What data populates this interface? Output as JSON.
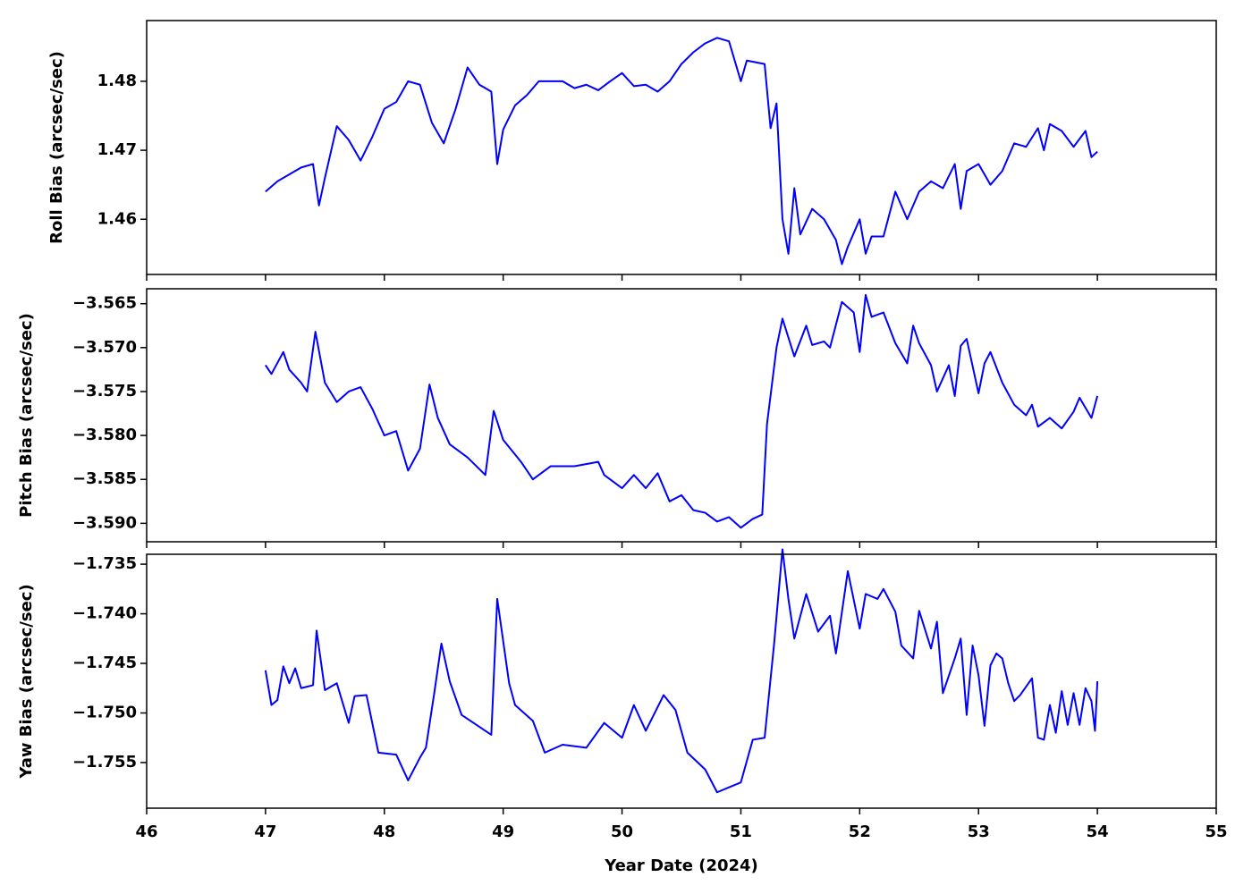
{
  "chart_data": [
    {
      "type": "line",
      "ylabel": "Roll Bias (arcsec/sec)",
      "color": "#0000ff",
      "x": [
        47.0,
        47.1,
        47.2,
        47.3,
        47.4,
        47.45,
        47.5,
        47.6,
        47.7,
        47.8,
        47.9,
        48.0,
        48.1,
        48.2,
        48.3,
        48.4,
        48.5,
        48.6,
        48.7,
        48.8,
        48.9,
        48.95,
        49.0,
        49.1,
        49.2,
        49.3,
        49.4,
        49.5,
        49.6,
        49.7,
        49.8,
        49.9,
        50.0,
        50.1,
        50.2,
        50.3,
        50.4,
        50.5,
        50.6,
        50.7,
        50.8,
        50.9,
        51.0,
        51.05,
        51.2,
        51.25,
        51.3,
        51.35,
        51.4,
        51.45,
        51.5,
        51.6,
        51.7,
        51.8,
        51.85,
        51.9,
        52.0,
        52.05,
        52.1,
        52.2,
        52.3,
        52.4,
        52.5,
        52.6,
        52.7,
        52.8,
        52.85,
        52.9,
        53.0,
        53.1,
        53.2,
        53.3,
        53.4,
        53.5,
        53.55,
        53.6,
        53.7,
        53.8,
        53.9,
        53.95,
        54.0
      ],
      "values": [
        1.464,
        1.4655,
        1.4665,
        1.4675,
        1.468,
        1.462,
        1.466,
        1.4735,
        1.4715,
        1.4685,
        1.472,
        1.476,
        1.477,
        1.48,
        1.4795,
        1.474,
        1.471,
        1.476,
        1.482,
        1.4795,
        1.4785,
        1.468,
        1.473,
        1.4765,
        1.478,
        1.48,
        1.48,
        1.48,
        1.479,
        1.4795,
        1.4787,
        1.48,
        1.4812,
        1.4793,
        1.4795,
        1.4785,
        1.48,
        1.4825,
        1.4842,
        1.4855,
        1.4863,
        1.4858,
        1.48,
        1.483,
        1.4825,
        1.4732,
        1.4768,
        1.46,
        1.455,
        1.4645,
        1.4578,
        1.4615,
        1.46,
        1.457,
        1.4535,
        1.456,
        1.46,
        1.455,
        1.4575,
        1.4575,
        1.464,
        1.46,
        1.464,
        1.4655,
        1.4645,
        1.468,
        1.4615,
        1.467,
        1.468,
        1.465,
        1.467,
        1.471,
        1.4705,
        1.4732,
        1.47,
        1.4738,
        1.4728,
        1.4705,
        1.4728,
        1.469,
        1.4698
      ],
      "xlim": [
        46,
        55
      ],
      "ylim": [
        1.452,
        1.4888
      ],
      "yticks": [
        1.46,
        1.47,
        1.48
      ]
    },
    {
      "type": "line",
      "ylabel": "Pitch Bias (arcsec/sec)",
      "color": "#0000ff",
      "x": [
        47.0,
        47.05,
        47.15,
        47.2,
        47.3,
        47.35,
        47.42,
        47.5,
        47.6,
        47.7,
        47.8,
        47.9,
        48.0,
        48.1,
        48.2,
        48.3,
        48.38,
        48.45,
        48.55,
        48.7,
        48.85,
        48.92,
        49.0,
        49.15,
        49.25,
        49.4,
        49.6,
        49.8,
        49.85,
        50.0,
        50.1,
        50.2,
        50.3,
        50.4,
        50.5,
        50.6,
        50.7,
        50.8,
        50.9,
        51.0,
        51.1,
        51.18,
        51.22,
        51.3,
        51.35,
        51.45,
        51.55,
        51.6,
        51.7,
        51.75,
        51.85,
        51.95,
        52.0,
        52.05,
        52.1,
        52.2,
        52.3,
        52.4,
        52.45,
        52.5,
        52.6,
        52.65,
        52.75,
        52.8,
        52.85,
        52.9,
        53.0,
        53.05,
        53.1,
        53.2,
        53.3,
        53.4,
        53.45,
        53.5,
        53.6,
        53.7,
        53.8,
        53.85,
        53.95,
        54.0
      ],
      "values": [
        -3.572,
        -3.573,
        -3.5705,
        -3.5725,
        -3.574,
        -3.575,
        -3.5682,
        -3.574,
        -3.5762,
        -3.575,
        -3.5745,
        -3.577,
        -3.58,
        -3.5795,
        -3.584,
        -3.5815,
        -3.5742,
        -3.578,
        -3.581,
        -3.5825,
        -3.5845,
        -3.5772,
        -3.5805,
        -3.583,
        -3.585,
        -3.5835,
        -3.5835,
        -3.583,
        -3.5845,
        -3.586,
        -3.5845,
        -3.586,
        -3.5843,
        -3.5875,
        -3.5868,
        -3.5885,
        -3.5888,
        -3.5898,
        -3.5893,
        -3.5905,
        -3.5895,
        -3.589,
        -3.5787,
        -3.57,
        -3.5667,
        -3.571,
        -3.5675,
        -3.5697,
        -3.5693,
        -3.57,
        -3.5648,
        -3.566,
        -3.5705,
        -3.564,
        -3.5665,
        -3.566,
        -3.5695,
        -3.5718,
        -3.5675,
        -3.5695,
        -3.572,
        -3.575,
        -3.572,
        -3.5755,
        -3.5698,
        -3.569,
        -3.5752,
        -3.5718,
        -3.5705,
        -3.574,
        -3.5765,
        -3.5777,
        -3.5765,
        -3.579,
        -3.578,
        -3.5792,
        -3.5773,
        -3.5757,
        -3.578,
        -3.5755
      ],
      "xlim": [
        46,
        55
      ],
      "ylim": [
        -3.5921,
        -3.5633
      ],
      "yticks": [
        {
          "value": -3.59,
          "label": "−3.590"
        },
        {
          "value": -3.585,
          "label": "−3.585"
        },
        {
          "value": -3.58,
          "label": "−3.580"
        },
        {
          "value": -3.575,
          "label": "−3.575"
        },
        {
          "value": -3.57,
          "label": "−3.570"
        },
        {
          "value": -3.565,
          "label": "−3.565"
        }
      ]
    },
    {
      "type": "line",
      "ylabel": "Yaw Bias (arcsec/sec)",
      "xlabel": "Year Date (2024)",
      "color": "#0000ff",
      "x": [
        47.0,
        47.05,
        47.1,
        47.15,
        47.2,
        47.25,
        47.3,
        47.4,
        47.43,
        47.5,
        47.6,
        47.7,
        47.75,
        47.85,
        47.95,
        48.1,
        48.2,
        48.3,
        48.35,
        48.42,
        48.48,
        48.55,
        48.65,
        48.75,
        48.9,
        48.95,
        49.05,
        49.1,
        49.25,
        49.35,
        49.5,
        49.7,
        49.85,
        50.0,
        50.1,
        50.2,
        50.35,
        50.45,
        50.55,
        50.7,
        50.8,
        50.9,
        51.0,
        51.1,
        51.2,
        51.28,
        51.35,
        51.4,
        51.45,
        51.55,
        51.65,
        51.75,
        51.8,
        51.9,
        52.0,
        52.05,
        52.15,
        52.2,
        52.3,
        52.35,
        52.45,
        52.5,
        52.6,
        52.65,
        52.7,
        52.8,
        52.85,
        52.9,
        52.95,
        53.0,
        53.05,
        53.1,
        53.15,
        53.2,
        53.25,
        53.3,
        53.35,
        53.45,
        53.5,
        53.55,
        53.6,
        53.65,
        53.7,
        53.75,
        53.8,
        53.85,
        53.9,
        53.95,
        53.98,
        54.0
      ],
      "values": [
        -1.7457,
        -1.7492,
        -1.7487,
        -1.7453,
        -1.747,
        -1.7455,
        -1.7475,
        -1.7472,
        -1.7417,
        -1.7477,
        -1.747,
        -1.751,
        -1.7483,
        -1.7482,
        -1.754,
        -1.7542,
        -1.7568,
        -1.7545,
        -1.7535,
        -1.748,
        -1.743,
        -1.7468,
        -1.7502,
        -1.751,
        -1.7522,
        -1.7385,
        -1.747,
        -1.7492,
        -1.7508,
        -1.754,
        -1.7532,
        -1.7535,
        -1.751,
        -1.7525,
        -1.7492,
        -1.7518,
        -1.7482,
        -1.7497,
        -1.754,
        -1.7557,
        -1.758,
        -1.7575,
        -1.757,
        -1.7527,
        -1.7525,
        -1.743,
        -1.7335,
        -1.7385,
        -1.7425,
        -1.738,
        -1.7418,
        -1.7402,
        -1.744,
        -1.7357,
        -1.7415,
        -1.738,
        -1.7385,
        -1.7375,
        -1.7398,
        -1.7432,
        -1.7445,
        -1.7397,
        -1.7435,
        -1.7408,
        -1.748,
        -1.7445,
        -1.7425,
        -1.7502,
        -1.7432,
        -1.7462,
        -1.7513,
        -1.7452,
        -1.744,
        -1.7445,
        -1.747,
        -1.7488,
        -1.7482,
        -1.7465,
        -1.7525,
        -1.7527,
        -1.7492,
        -1.752,
        -1.7478,
        -1.7512,
        -1.748,
        -1.7512,
        -1.7475,
        -1.7488,
        -1.7518,
        -1.7468
      ],
      "xlim": [
        46,
        55
      ],
      "ylim": [
        -1.7596,
        -1.734
      ],
      "xticks": [
        46,
        47,
        48,
        49,
        50,
        51,
        52,
        53,
        54,
        55
      ],
      "yticks": [
        {
          "value": -1.755,
          "label": "−1.755"
        },
        {
          "value": -1.75,
          "label": "−1.750"
        },
        {
          "value": -1.745,
          "label": "−1.745"
        },
        {
          "value": -1.74,
          "label": "−1.740"
        },
        {
          "value": -1.735,
          "label": "−1.735"
        }
      ]
    }
  ]
}
